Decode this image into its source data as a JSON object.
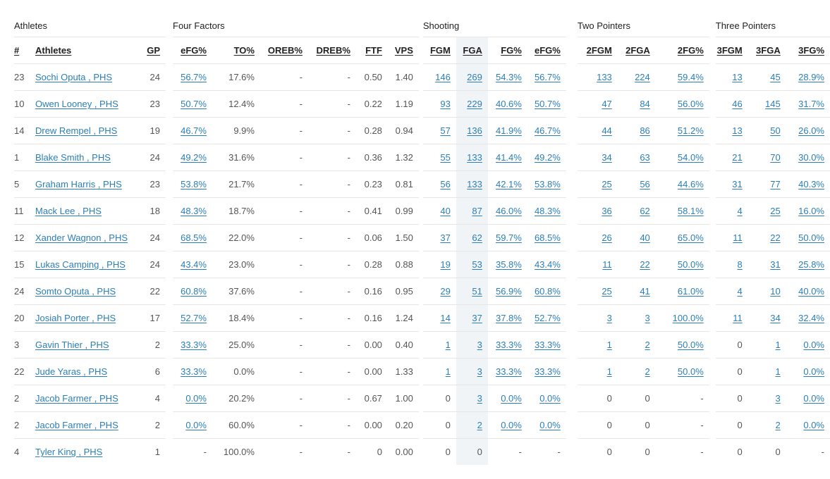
{
  "groups": [
    "Athletes",
    "Four Factors",
    "Shooting",
    "Two Pointers",
    "Three Pointers"
  ],
  "headers": [
    "#",
    "Athletes",
    "GP",
    "eFG%",
    "TO%",
    "OREB%",
    "DREB%",
    "FTF",
    "VPS",
    "FGM",
    "FGA",
    "FG%",
    "eFG%",
    "2FGM",
    "2FGA",
    "2FG%",
    "3FGM",
    "3FGA",
    "3FG%"
  ],
  "rows": [
    [
      "23",
      "Sochi Oputa , PHS",
      "24",
      "56.7%",
      "17.6%",
      "-",
      "-",
      "0.50",
      "1.40",
      "146",
      "269",
      "54.3%",
      "56.7%",
      "133",
      "224",
      "59.4%",
      "13",
      "45",
      "28.9%"
    ],
    [
      "10",
      "Owen Looney , PHS",
      "23",
      "50.7%",
      "12.4%",
      "-",
      "-",
      "0.22",
      "1.19",
      "93",
      "229",
      "40.6%",
      "50.7%",
      "47",
      "84",
      "56.0%",
      "46",
      "145",
      "31.7%"
    ],
    [
      "14",
      "Drew Rempel , PHS",
      "19",
      "46.7%",
      "9.9%",
      "-",
      "-",
      "0.28",
      "0.94",
      "57",
      "136",
      "41.9%",
      "46.7%",
      "44",
      "86",
      "51.2%",
      "13",
      "50",
      "26.0%"
    ],
    [
      "1",
      "Blake Smith , PHS",
      "24",
      "49.2%",
      "31.6%",
      "-",
      "-",
      "0.36",
      "1.32",
      "55",
      "133",
      "41.4%",
      "49.2%",
      "34",
      "63",
      "54.0%",
      "21",
      "70",
      "30.0%"
    ],
    [
      "5",
      "Graham Harris , PHS",
      "23",
      "53.8%",
      "21.7%",
      "-",
      "-",
      "0.23",
      "0.81",
      "56",
      "133",
      "42.1%",
      "53.8%",
      "25",
      "56",
      "44.6%",
      "31",
      "77",
      "40.3%"
    ],
    [
      "11",
      "Mack Lee , PHS",
      "18",
      "48.3%",
      "18.7%",
      "-",
      "-",
      "0.41",
      "0.99",
      "40",
      "87",
      "46.0%",
      "48.3%",
      "36",
      "62",
      "58.1%",
      "4",
      "25",
      "16.0%"
    ],
    [
      "12",
      "Xander Wagnon , PHS",
      "24",
      "68.5%",
      "22.0%",
      "-",
      "-",
      "0.06",
      "1.50",
      "37",
      "62",
      "59.7%",
      "68.5%",
      "26",
      "40",
      "65.0%",
      "11",
      "22",
      "50.0%"
    ],
    [
      "15",
      "Lukas Camping , PHS",
      "24",
      "43.4%",
      "23.0%",
      "-",
      "-",
      "0.28",
      "0.88",
      "19",
      "53",
      "35.8%",
      "43.4%",
      "11",
      "22",
      "50.0%",
      "8",
      "31",
      "25.8%"
    ],
    [
      "24",
      "Somto Oputa , PHS",
      "22",
      "60.8%",
      "37.6%",
      "-",
      "-",
      "0.16",
      "0.95",
      "29",
      "51",
      "56.9%",
      "60.8%",
      "25",
      "41",
      "61.0%",
      "4",
      "10",
      "40.0%"
    ],
    [
      "20",
      "Josiah Porter , PHS",
      "17",
      "52.7%",
      "18.4%",
      "-",
      "-",
      "0.16",
      "1.24",
      "14",
      "37",
      "37.8%",
      "52.7%",
      "3",
      "3",
      "100.0%",
      "11",
      "34",
      "32.4%"
    ],
    [
      "3",
      "Gavin Thier , PHS",
      "2",
      "33.3%",
      "25.0%",
      "-",
      "-",
      "0.00",
      "0.40",
      "1",
      "3",
      "33.3%",
      "33.3%",
      "1",
      "2",
      "50.0%",
      "0",
      "1",
      "0.0%"
    ],
    [
      "22",
      "Jude Yaras , PHS",
      "6",
      "33.3%",
      "0.0%",
      "-",
      "-",
      "0.00",
      "1.33",
      "1",
      "3",
      "33.3%",
      "33.3%",
      "1",
      "2",
      "50.0%",
      "0",
      "1",
      "0.0%"
    ],
    [
      "2",
      "Jacob Farmer , PHS",
      "4",
      "0.0%",
      "20.2%",
      "-",
      "-",
      "0.67",
      "1.00",
      "0",
      "3",
      "0.0%",
      "0.0%",
      "0",
      "0",
      "-",
      "0",
      "3",
      "0.0%"
    ],
    [
      "2",
      "Jacob Farmer , PHS",
      "2",
      "0.0%",
      "60.0%",
      "-",
      "-",
      "0.00",
      "0.20",
      "0",
      "2",
      "0.0%",
      "0.0%",
      "0",
      "0",
      "-",
      "0",
      "2",
      "0.0%"
    ],
    [
      "4",
      "Tyler King , PHS",
      "1",
      "-",
      "100.0%",
      "-",
      "-",
      "0",
      "0.00",
      "0",
      "0",
      "-",
      "-",
      "0",
      "0",
      "-",
      "0",
      "0",
      "-"
    ]
  ],
  "colors": {
    "link": "#2a7fb8",
    "highlight": "#f1f4f7",
    "border": "#e6e6e6"
  }
}
